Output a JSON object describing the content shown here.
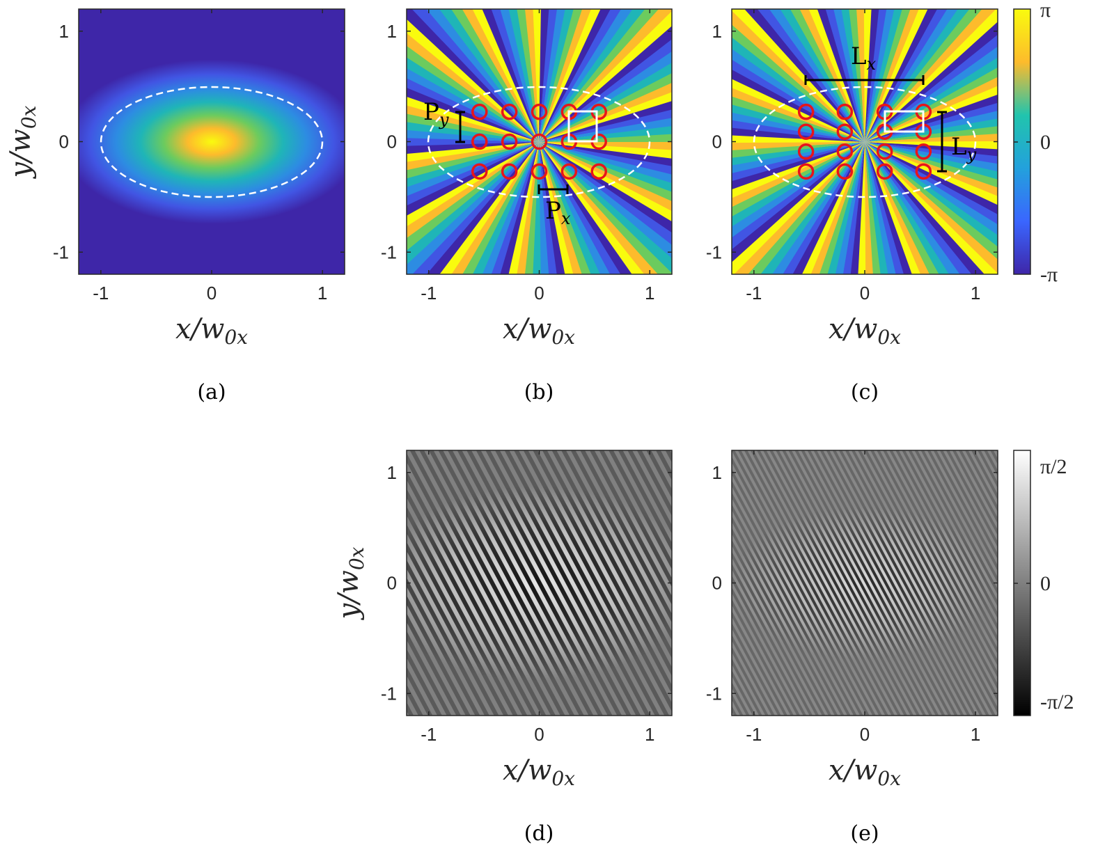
{
  "chart_data": [
    {
      "type": "heatmap",
      "panel": "(a)",
      "xlabel": "x/w0x",
      "ylabel": "y/w0x",
      "xlim": [
        -1.2,
        1.2
      ],
      "ylim": [
        -1.2,
        1.2
      ],
      "x_ticks": [
        "-1",
        "0",
        "1"
      ],
      "y_ticks": [
        "-1",
        "0",
        "1"
      ],
      "content": "elliptical Gaussian intensity, peak at center",
      "ellipse": {
        "rx": 1,
        "ry": 0.5
      }
    },
    {
      "type": "heatmap",
      "panel": "(b)",
      "xlabel": "x/w0x",
      "ylabel": "",
      "xlim": [
        -1.2,
        1.2
      ],
      "ylim": [
        -1.2,
        1.2
      ],
      "x_ticks": [
        "-1",
        "0",
        "1"
      ],
      "y_ticks": [
        "-1",
        "0",
        "1"
      ],
      "content": "phase map, cyclic colormap",
      "ellipse": {
        "rx": 1,
        "ry": 0.5
      },
      "vortex_x": [
        -0.54,
        -0.27,
        0,
        0.27,
        0.54
      ],
      "vortex_y": [
        0.27,
        0,
        -0.27
      ],
      "annotations": {
        "Px": "P",
        "Px_sub": "x",
        "Py": "P",
        "Py_sub": "y"
      }
    },
    {
      "type": "heatmap",
      "panel": "(c)",
      "xlabel": "x/w0x",
      "ylabel": "",
      "xlim": [
        -1.2,
        1.2
      ],
      "ylim": [
        -1.2,
        1.2
      ],
      "x_ticks": [
        "-1",
        "0",
        "1"
      ],
      "y_ticks": [
        "-1",
        "0",
        "1"
      ],
      "content": "phase map, cyclic colormap",
      "ellipse": {
        "rx": 1,
        "ry": 0.5
      },
      "vortex_x": [
        -0.53,
        -0.18,
        0.18,
        0.53
      ],
      "vortex_y": [
        0.27,
        0.09,
        -0.09,
        -0.27
      ],
      "annotations": {
        "Lx": "L",
        "Lx_sub": "x",
        "Ly": "L",
        "Ly_sub": "y"
      }
    },
    {
      "type": "heatmap",
      "panel": "(d)",
      "xlabel": "x/w0x",
      "ylabel": "y/w0x",
      "xlim": [
        -1.2,
        1.2
      ],
      "ylim": [
        -1.2,
        1.2
      ],
      "x_ticks": [
        "-1",
        "0",
        "1"
      ],
      "y_ticks": [
        "-1",
        "0",
        "1"
      ],
      "content": "grayscale residual phase fringes"
    },
    {
      "type": "heatmap",
      "panel": "(e)",
      "xlabel": "x/w0x",
      "ylabel": "",
      "xlim": [
        -1.2,
        1.2
      ],
      "ylim": [
        -1.2,
        1.2
      ],
      "x_ticks": [
        "-1",
        "0",
        "1"
      ],
      "y_ticks": [
        "-1",
        "0",
        "1"
      ],
      "content": "grayscale residual phase fringes"
    }
  ],
  "colorbars": {
    "top": {
      "labels": [
        "π",
        "0",
        "-π"
      ],
      "colors": [
        "#f9fb0e",
        "#fdbb2c",
        "#21c4ad",
        "#23a1dc",
        "#3a66ff",
        "#3e26a8"
      ]
    },
    "bottom": {
      "labels": [
        "π/2",
        "0",
        "-π/2"
      ],
      "colors": [
        "#ffffff",
        "#808080",
        "#000000"
      ]
    }
  },
  "captions": [
    "(a)",
    "(b)",
    "(c)",
    "(d)",
    "(e)"
  ],
  "labels": {
    "x_var": "x",
    "x_den": "/w",
    "x_sub": "0x",
    "y_var": "y",
    "y_den": "/w",
    "y_sub": "0x"
  }
}
